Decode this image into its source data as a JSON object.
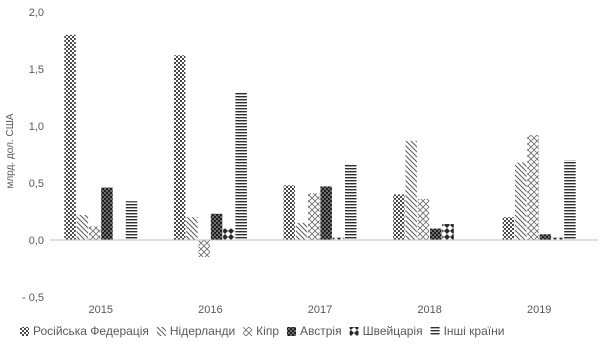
{
  "chart_data": {
    "type": "bar",
    "title": "",
    "xlabel": "",
    "ylabel": "млрд. дол. США",
    "ylim": [
      -0.5,
      2.0
    ],
    "yticks": [
      "2,0",
      "1,5",
      "1,0",
      "0,5",
      "0,0",
      "- 0,5"
    ],
    "ytick_values": [
      2.0,
      1.5,
      1.0,
      0.5,
      0.0,
      -0.5
    ],
    "grid": false,
    "legend_position": "bottom",
    "categories": [
      "2015",
      "2016",
      "2017",
      "2018",
      "2019"
    ],
    "series": [
      {
        "name": "Російська Федерація",
        "values": [
          1.8,
          1.62,
          0.48,
          0.4,
          0.2
        ]
      },
      {
        "name": "Нідерланди",
        "values": [
          0.22,
          0.2,
          0.15,
          0.87,
          0.68
        ]
      },
      {
        "name": "Кіпр",
        "values": [
          0.12,
          -0.15,
          0.41,
          0.36,
          0.92
        ]
      },
      {
        "name": "Австрія",
        "values": [
          0.46,
          0.23,
          0.47,
          0.1,
          0.05
        ]
      },
      {
        "name": "Швейцарія",
        "values": [
          0.0,
          0.1,
          0.02,
          0.14,
          0.02
        ]
      },
      {
        "name": "Інші країни",
        "values": [
          0.34,
          1.3,
          0.67,
          0.0,
          0.7
        ]
      }
    ]
  },
  "colors": {
    "axis": "#bfbfbf",
    "bar": "#404040",
    "text": "#595959"
  }
}
